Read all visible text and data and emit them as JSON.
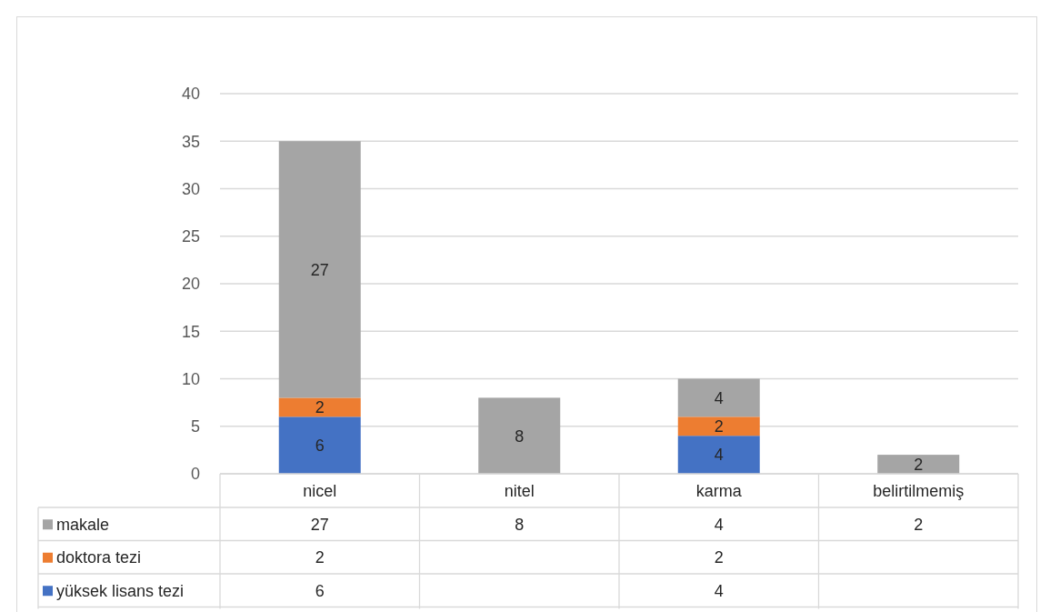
{
  "chart_data": {
    "type": "bar",
    "stacked": true,
    "categories": [
      "nicel",
      "nitel",
      "karma",
      "belirtilmemiş"
    ],
    "series": [
      {
        "name": "yüksek lisans tezi",
        "color": "#4472c4",
        "values": [
          6,
          null,
          4,
          null
        ],
        "value_labels": [
          "6",
          null,
          "4",
          null
        ]
      },
      {
        "name": "doktora tezi",
        "color": "#ed7d31",
        "values": [
          2,
          null,
          2,
          null
        ],
        "value_labels": [
          "2",
          null,
          "2",
          null
        ]
      },
      {
        "name": "makale",
        "color": "#a5a5a5",
        "values": [
          27,
          8,
          4,
          2
        ],
        "value_labels": [
          "27",
          "8",
          "4",
          "2"
        ]
      }
    ],
    "ylim": [
      0,
      40
    ],
    "yticks": [
      0,
      5,
      10,
      15,
      20,
      25,
      30,
      35,
      40
    ],
    "grid": "y",
    "data_labels": true,
    "legend": "bottom"
  }
}
